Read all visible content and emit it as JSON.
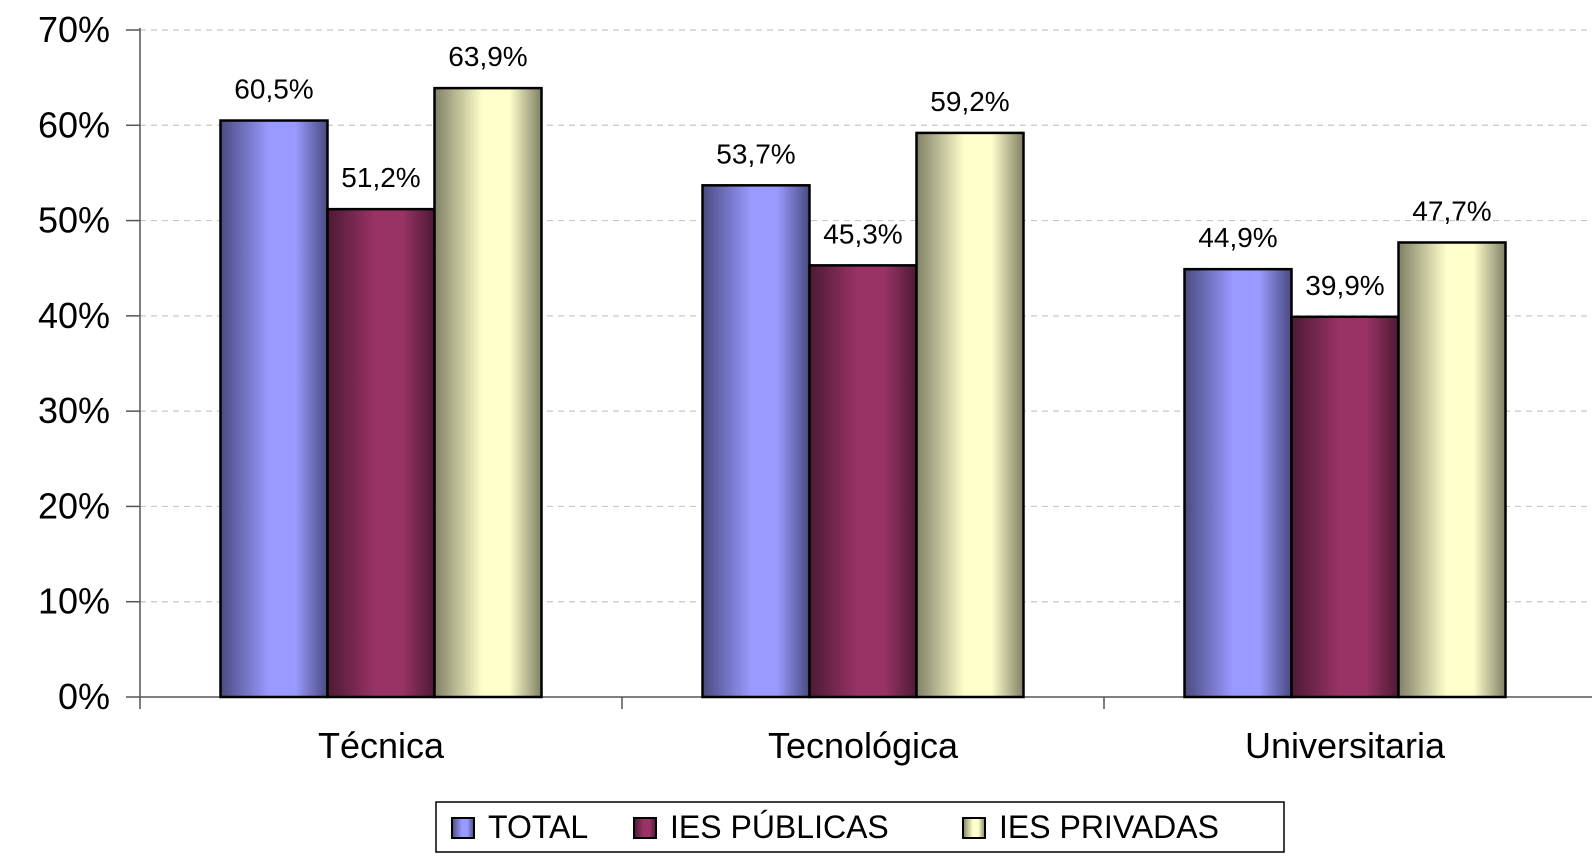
{
  "chart_data": {
    "type": "bar",
    "title": "",
    "xlabel": "",
    "ylabel": "",
    "categories": [
      "Técnica",
      "Tecnológica",
      "Universitaria"
    ],
    "series": [
      {
        "name": "TOTAL",
        "values": [
          60.5,
          53.7,
          44.9
        ],
        "labels": [
          "60,5%",
          "53,7%",
          "44,9%"
        ],
        "color_light": "#9999ff",
        "color_dark": "#4a4a80"
      },
      {
        "name": "IES PÚBLICAS",
        "values": [
          51.2,
          45.3,
          39.9
        ],
        "labels": [
          "51,2%",
          "45,3%",
          "39,9%"
        ],
        "color_light": "#993366",
        "color_dark": "#4d1a33"
      },
      {
        "name": "IES PRIVADAS",
        "values": [
          63.9,
          59.2,
          47.7
        ],
        "labels": [
          "63,9%",
          "59,2%",
          "47,7%"
        ],
        "color_light": "#ffffcc",
        "color_dark": "#808066"
      }
    ],
    "ylim": [
      0,
      70
    ],
    "yticks": [
      0,
      10,
      20,
      30,
      40,
      50,
      60,
      70
    ],
    "ytick_labels": [
      "0%",
      "10%",
      "20%",
      "30%",
      "40%",
      "50%",
      "60%",
      "70%"
    ],
    "grid": true,
    "legend_position": "bottom"
  }
}
